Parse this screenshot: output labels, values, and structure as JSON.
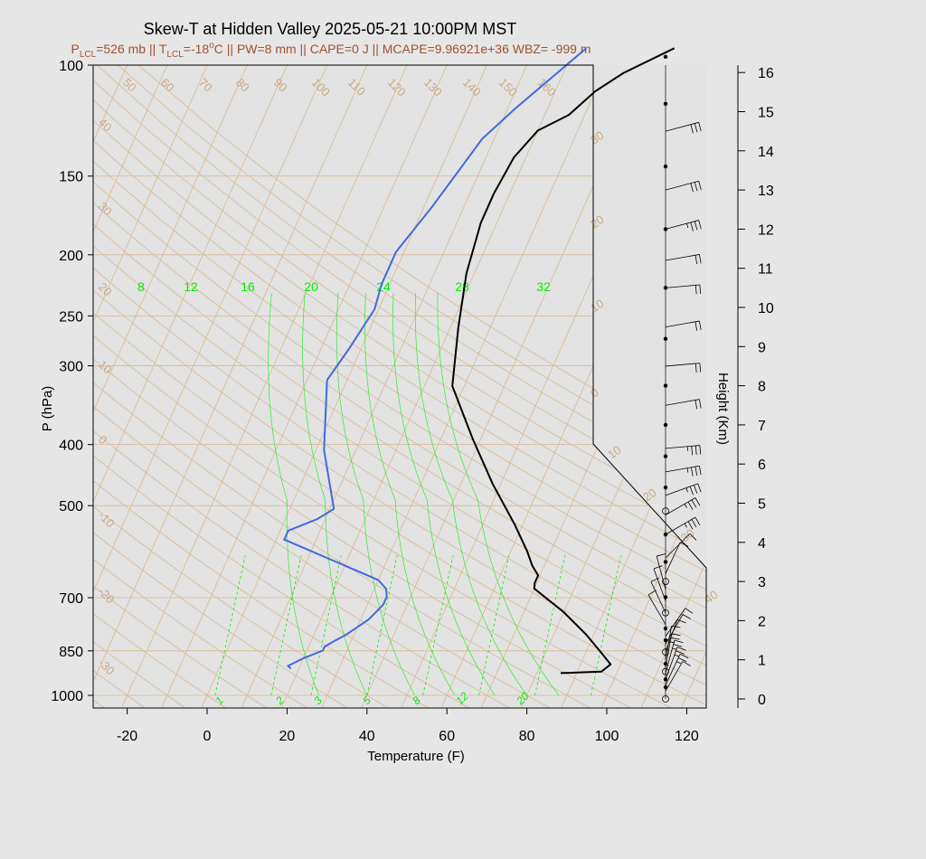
{
  "chart_data": {
    "type": "skew-t",
    "title": "Skew-T at Hidden Valley 2025-05-21 10:00PM MST",
    "subtitle": {
      "p_lcl_sym": "P",
      "p_lcl_sub": "LCL",
      "p_lcl_val": "=526 mb || ",
      "t_lcl_sym": "T",
      "t_lcl_sub": "LCL",
      "t_lcl_val": "=-18",
      "t_lcl_deg": "o",
      "rest": "C || PW=8 mm || CAPE=0 J || MCAPE=9.96921e+36 WBZ= -999 m"
    },
    "xlabel": "Temperature (F)",
    "ylabel": "P (hPa)",
    "y2label": "Height (Km)",
    "x_ticks": [
      -20,
      0,
      20,
      40,
      60,
      80,
      100,
      120
    ],
    "pressure_ticks": [
      100,
      150,
      200,
      250,
      300,
      400,
      500,
      700,
      850,
      1000
    ],
    "height_ticks": [
      0,
      1,
      2,
      3,
      4,
      5,
      6,
      7,
      8,
      9,
      10,
      11,
      12,
      13,
      14,
      15,
      16
    ],
    "theta_labels": [
      50,
      60,
      70,
      80,
      90,
      100,
      110,
      120,
      130,
      140,
      150,
      160
    ],
    "isotherm_labels_left": [
      40,
      30,
      20,
      10,
      0,
      -10,
      -20,
      -30
    ],
    "isotherm_labels_right": [
      30,
      20,
      10,
      0,
      10,
      20,
      30,
      40
    ],
    "mixing_ratio_top": [
      8,
      12,
      16,
      20,
      24,
      28,
      32
    ],
    "mixing_ratio_bottom": [
      1,
      2,
      3,
      5,
      8,
      12,
      20
    ],
    "series": [
      {
        "color": "#000000",
        "x": [
          86,
          96,
          97.5,
          94,
          88,
          80,
          70,
          69.5,
          69.5,
          67,
          64,
          58,
          48,
          38,
          27,
          22,
          18,
          16,
          16,
          17,
          20,
          26,
          30,
          35,
          45
        ],
        "y": [
          922,
          917,
          893,
          857,
          800,
          738,
          677,
          664,
          645,
          623,
          590,
          536,
          462,
          392,
          323,
          261,
          214,
          178,
          160,
          140,
          127,
          120,
          110,
          103,
          94
        ]
      },
      {
        "color": "#4169e1",
        "x": [
          18,
          17,
          20,
          24,
          24,
          26,
          28,
          32,
          34,
          34,
          33,
          30,
          2,
          2,
          8,
          11,
          2,
          -5,
          -3,
          -1,
          -2,
          -2,
          2,
          7,
          12,
          23
        ],
        "y": [
          907,
          898,
          873,
          849,
          837,
          818,
          802,
          758,
          718,
          698,
          678,
          656,
          566,
          548,
          525,
          506,
          408,
          316,
          282,
          244,
          223,
          198,
          168,
          131,
          117,
          94
        ]
      }
    ],
    "height_profile_km": [
      0,
      0.3,
      0.5,
      0.7,
      0.9,
      1.2,
      1.5,
      1.8,
      2.2,
      2.6,
      3.0,
      3.5,
      4.2,
      4.8,
      5.4,
      6.2,
      7.0,
      8.0,
      9.2,
      10.5,
      12.0,
      13.6,
      15.2,
      16.4
    ],
    "winds": [
      {
        "km": 0.2,
        "dir": 210,
        "kt": 10
      },
      {
        "km": 0.35,
        "dir": 205,
        "kt": 15
      },
      {
        "km": 0.5,
        "dir": 200,
        "kt": 15
      },
      {
        "km": 0.65,
        "dir": 195,
        "kt": 15
      },
      {
        "km": 0.8,
        "dir": 190,
        "kt": 15
      },
      {
        "km": 1.0,
        "dir": 190,
        "kt": 10
      },
      {
        "km": 1.2,
        "dir": 200,
        "kt": 10
      },
      {
        "km": 1.4,
        "dir": 210,
        "kt": 10
      },
      {
        "km": 1.6,
        "dir": 215,
        "kt": 10
      },
      {
        "km": 1.9,
        "dir": 150,
        "kt": 10
      },
      {
        "km": 2.2,
        "dir": 155,
        "kt": 10
      },
      {
        "km": 2.5,
        "dir": 160,
        "kt": 10
      },
      {
        "km": 2.8,
        "dir": 165,
        "kt": 10
      },
      {
        "km": 3.2,
        "dir": 205,
        "kt": 10
      },
      {
        "km": 3.6,
        "dir": 225,
        "kt": 10
      },
      {
        "km": 4.2,
        "dir": 240,
        "kt": 25
      },
      {
        "km": 4.7,
        "dir": 240,
        "kt": 25
      },
      {
        "km": 5.2,
        "dir": 250,
        "kt": 25
      },
      {
        "km": 5.8,
        "dir": 260,
        "kt": 25
      },
      {
        "km": 6.4,
        "dir": 265,
        "kt": 25
      },
      {
        "km": 7.5,
        "dir": 260,
        "kt": 20
      },
      {
        "km": 8.5,
        "dir": 265,
        "kt": 20
      },
      {
        "km": 9.5,
        "dir": 260,
        "kt": 20
      },
      {
        "km": 10.5,
        "dir": 265,
        "kt": 20
      },
      {
        "km": 11.2,
        "dir": 260,
        "kt": 20
      },
      {
        "km": 12.0,
        "dir": 255,
        "kt": 25
      },
      {
        "km": 13.0,
        "dir": 255,
        "kt": 30
      },
      {
        "km": 14.5,
        "dir": 255,
        "kt": 30
      }
    ]
  },
  "colors": {
    "background": "#e6e6e6",
    "plot_bg": "#e3e3e3",
    "temperature": "#000000",
    "dewpoint": "#4169e1",
    "isotherm": "#d8b890",
    "mixing_ratio": "#00ee00",
    "subtitle": "#a0522d"
  }
}
